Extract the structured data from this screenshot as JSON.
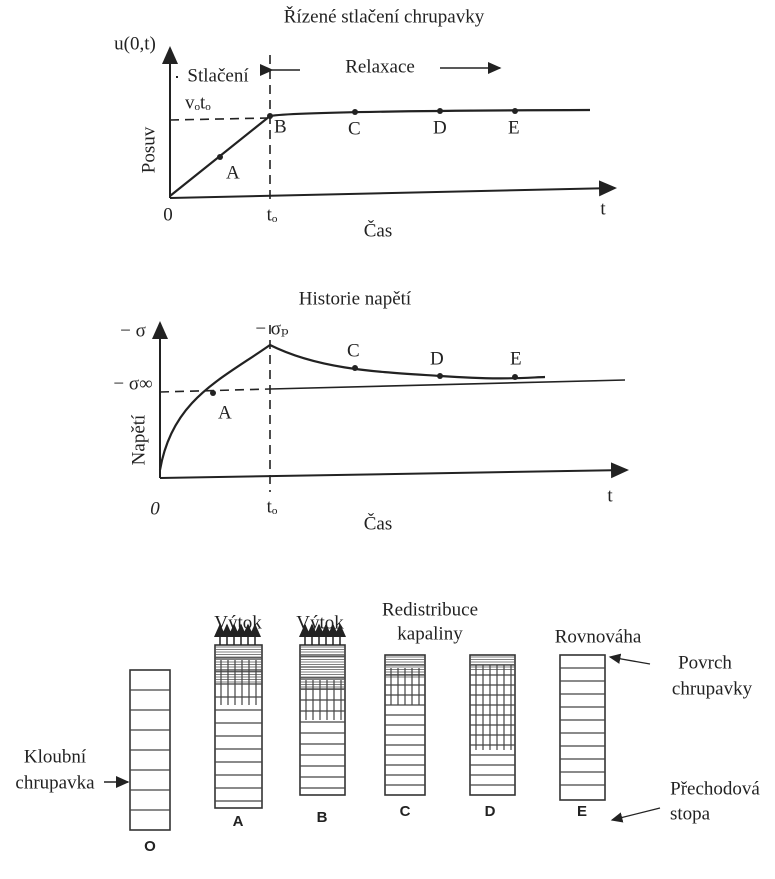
{
  "displacement_diagram": {
    "title": "Řízené stlačení chrupavky",
    "y_label": "u(0,t)",
    "y_axis_title": "Posuv",
    "phase_compression": "Stlačení",
    "phase_relaxation": "Relaxace",
    "level_label": "vₒtₒ",
    "points": [
      "A",
      "B",
      "C",
      "D",
      "E"
    ],
    "origin": "0",
    "time_marker": "tₒ",
    "x_end_label": "t",
    "x_axis_title": "Čas"
  },
  "stress_diagram": {
    "title": "Historie napětí",
    "y_label": "− σ",
    "peak_label": "− σₚ",
    "equilibrium_label": "− σ∞",
    "y_axis_title": "Napětí",
    "points": [
      "A",
      "C",
      "D",
      "E"
    ],
    "origin": "0",
    "time_marker": "tₒ",
    "x_end_label": "t",
    "x_axis_title": "Čas"
  },
  "cartilage_states": {
    "headers": {
      "outflow_a": "Výtok",
      "outflow_b": "Výtok",
      "redistribution": [
        "Redistribuce",
        "kapaliny"
      ],
      "equilibrium": "Rovnováha"
    },
    "column_labels": [
      "O",
      "A",
      "B",
      "C",
      "D",
      "E"
    ],
    "annotations": {
      "articular_cartilage": [
        "Kloubní",
        "chrupavka"
      ],
      "surface": [
        "Povrch",
        "chrupavky"
      ],
      "transition": [
        "Přechodová",
        "stopa"
      ]
    }
  }
}
